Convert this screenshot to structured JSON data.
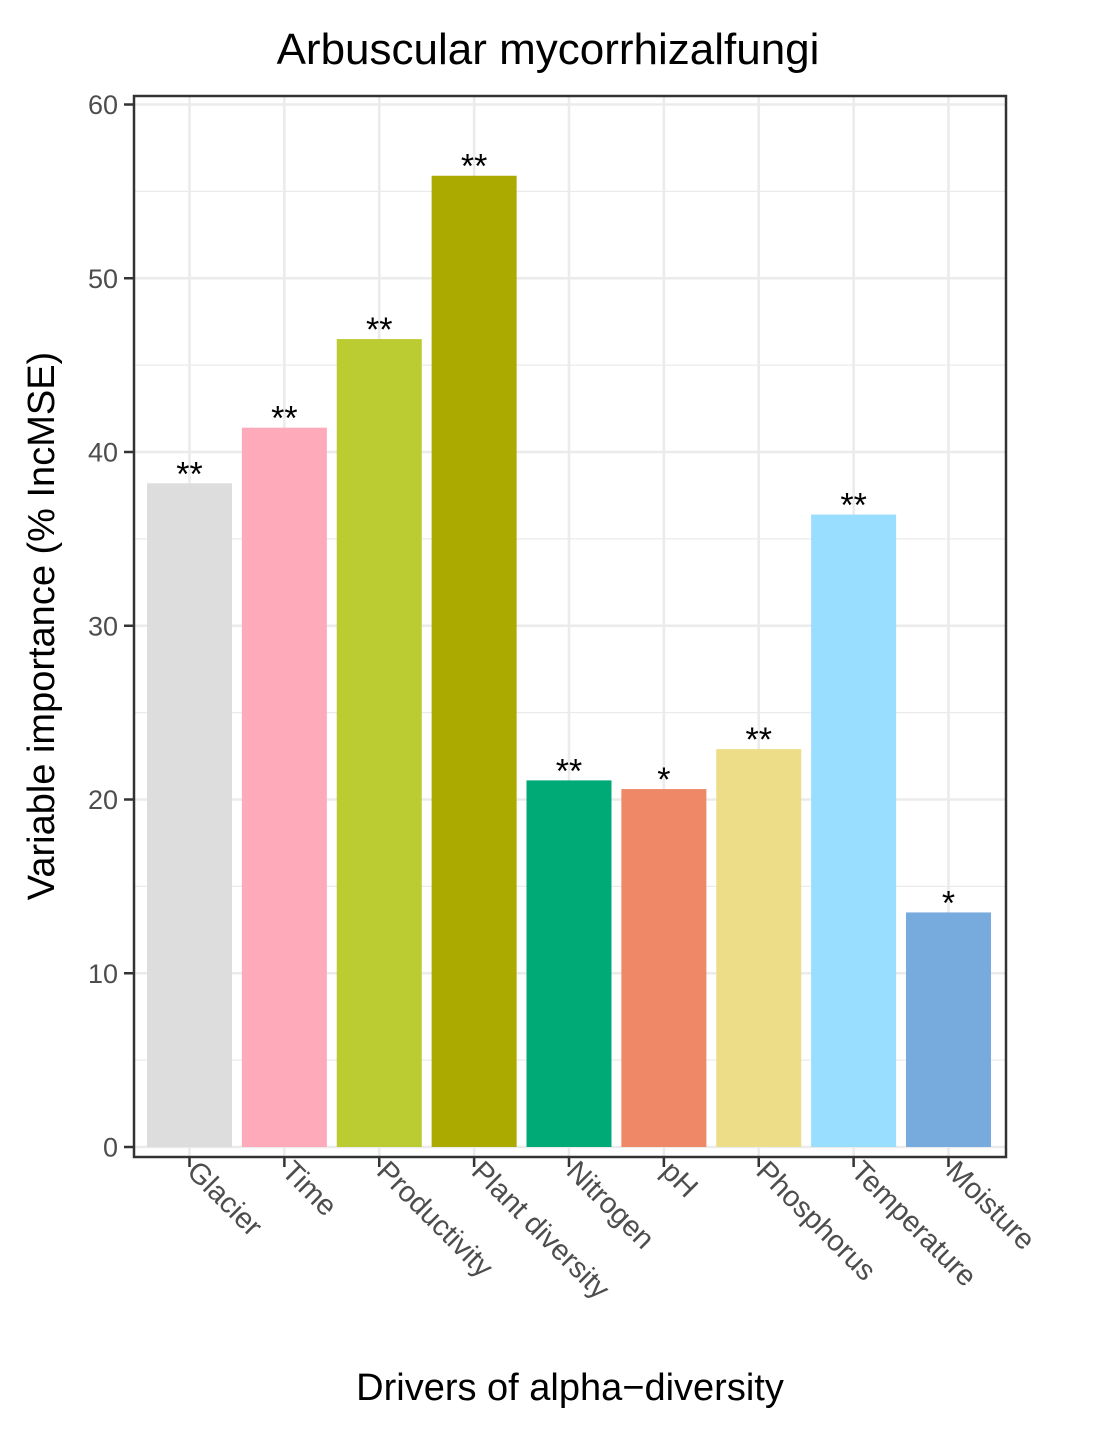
{
  "chart_data": {
    "type": "bar",
    "title": "Arbuscular mycorrhizalfungi",
    "xlabel": "Drivers of alpha−diversity",
    "ylabel": "Variable importance (% IncMSE)",
    "ylim": [
      0,
      60
    ],
    "yticks": [
      0,
      10,
      20,
      30,
      40,
      50,
      60
    ],
    "grid": true,
    "categories": [
      "Glacier",
      "Time",
      "Productivity",
      "Plant diversity",
      "Nitrogen",
      "pH",
      "Phosphorus",
      "Temperature",
      "Moisture"
    ],
    "values": [
      38.2,
      41.4,
      46.5,
      55.9,
      21.1,
      20.6,
      22.9,
      36.4,
      13.5
    ],
    "significance": [
      "**",
      "**",
      "**",
      "**",
      "**",
      "*",
      "**",
      "**",
      "*"
    ],
    "colors": [
      "#DDDDDD",
      "#FFAABB",
      "#BBCC33",
      "#AAAA00",
      "#00AA77",
      "#EE8866",
      "#EEDD88",
      "#99DDFF",
      "#77AADD"
    ]
  }
}
